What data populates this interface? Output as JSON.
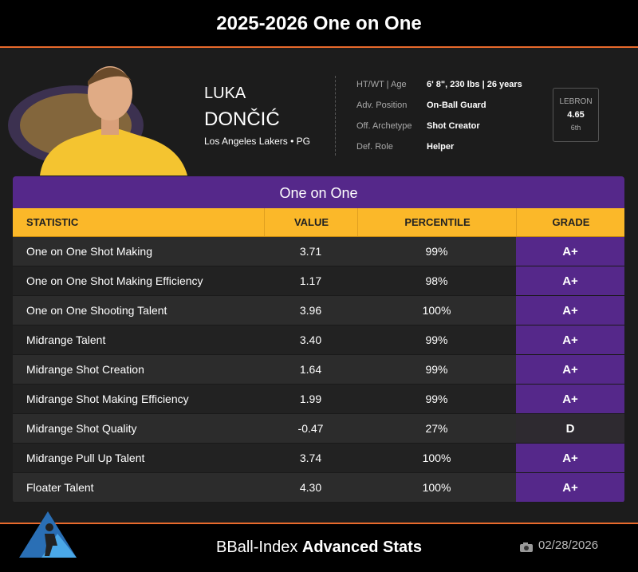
{
  "header": {
    "title": "2025-2026 One on One"
  },
  "player": {
    "first_name": "LUKA",
    "last_name": "DONČIĆ",
    "team_line": "Los Angeles Lakers • PG",
    "info": [
      {
        "label": "HT/WT | Age",
        "value": "6' 8\", 230 lbs | 26 years"
      },
      {
        "label": "Adv. Position",
        "value": "On-Ball Guard"
      },
      {
        "label": "Off. Archetype",
        "value": "Shot Creator"
      },
      {
        "label": "Def. Role",
        "value": "Helper"
      }
    ],
    "lebron": {
      "label": "LEBRON",
      "value": "4.65",
      "rank": "6th"
    }
  },
  "table": {
    "title": "One on One",
    "headers": [
      "STATISTIC",
      "VALUE",
      "PERCENTILE",
      "GRADE"
    ],
    "rows": [
      {
        "statistic": "One on One Shot Making",
        "value": "3.71",
        "percentile": "99%",
        "grade": "A+",
        "grade_color": "#55288a"
      },
      {
        "statistic": "One on One Shot Making Efficiency",
        "value": "1.17",
        "percentile": "98%",
        "grade": "A+",
        "grade_color": "#55288a"
      },
      {
        "statistic": "One on One Shooting Talent",
        "value": "3.96",
        "percentile": "100%",
        "grade": "A+",
        "grade_color": "#55288a"
      },
      {
        "statistic": "Midrange Talent",
        "value": "3.40",
        "percentile": "99%",
        "grade": "A+",
        "grade_color": "#55288a"
      },
      {
        "statistic": "Midrange Shot Creation",
        "value": "1.64",
        "percentile": "99%",
        "grade": "A+",
        "grade_color": "#55288a"
      },
      {
        "statistic": "Midrange Shot Making Efficiency",
        "value": "1.99",
        "percentile": "99%",
        "grade": "A+",
        "grade_color": "#55288a"
      },
      {
        "statistic": "Midrange Shot Quality",
        "value": "-0.47",
        "percentile": "27%",
        "grade": "D",
        "grade_color": "#2e2a30"
      },
      {
        "statistic": "Midrange Pull Up Talent",
        "value": "3.74",
        "percentile": "100%",
        "grade": "A+",
        "grade_color": "#55288a"
      },
      {
        "statistic": "Floater Talent",
        "value": "4.30",
        "percentile": "100%",
        "grade": "A+",
        "grade_color": "#55288a"
      }
    ]
  },
  "footer": {
    "brand": "BBall-Index",
    "brand_bold": "Advanced Stats",
    "date": "02/28/2026"
  }
}
